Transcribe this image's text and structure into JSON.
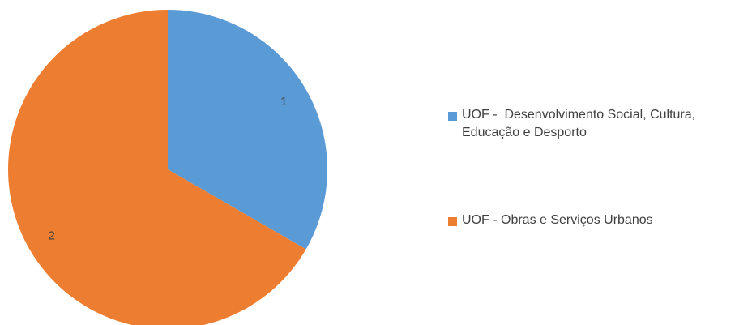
{
  "chart_data": {
    "type": "pie",
    "categories": [
      "UOF -  Desenvolvimento Social, Cultura, Educação e Desporto",
      "UOF - Obras e Serviços Urbanos"
    ],
    "values": [
      1,
      2
    ],
    "colors": [
      "#5b9bd5",
      "#ed7d31"
    ],
    "legend": "right"
  }
}
